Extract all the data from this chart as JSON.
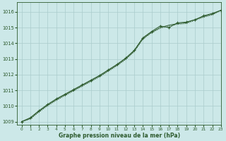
{
  "title": "Graphe pression niveau de la mer (hPa)",
  "background_color": "#cce8e8",
  "grid_color": "#aacccc",
  "line_color": "#2d5a2d",
  "xlim": [
    -0.5,
    23
  ],
  "ylim": [
    1008.8,
    1016.6
  ],
  "yticks": [
    1009,
    1010,
    1011,
    1012,
    1013,
    1014,
    1015,
    1016
  ],
  "xticks": [
    0,
    1,
    2,
    3,
    4,
    5,
    6,
    7,
    8,
    9,
    10,
    11,
    12,
    13,
    14,
    15,
    16,
    17,
    18,
    19,
    20,
    21,
    22,
    23
  ],
  "series": [
    [
      1009.0,
      1009.25,
      1009.7,
      1010.1,
      1010.45,
      1010.75,
      1011.05,
      1011.35,
      1011.65,
      1011.95,
      1012.3,
      1012.65,
      1013.05,
      1013.55,
      1014.35,
      1014.75,
      1015.1,
      1015.0,
      1015.3,
      1015.35,
      1015.5,
      1015.75,
      1015.9,
      1016.1
    ],
    [
      1009.0,
      1009.2,
      1009.65,
      1010.05,
      1010.4,
      1010.7,
      1011.0,
      1011.3,
      1011.6,
      1011.9,
      1012.25,
      1012.6,
      1013.0,
      1013.5,
      1014.3,
      1014.7,
      1015.0,
      1015.15,
      1015.25,
      1015.3,
      1015.5,
      1015.7,
      1015.85,
      1016.1
    ],
    [
      1009.0,
      1009.15,
      1009.6,
      1010.0,
      1010.35,
      1010.65,
      1010.95,
      1011.25,
      1011.55,
      1011.85,
      1012.2,
      1012.55,
      1012.95,
      1013.45,
      1014.25,
      1014.65,
      1014.95,
      1015.1,
      1015.2,
      1015.25,
      1015.45,
      1015.65,
      1015.8,
      1016.1
    ]
  ]
}
